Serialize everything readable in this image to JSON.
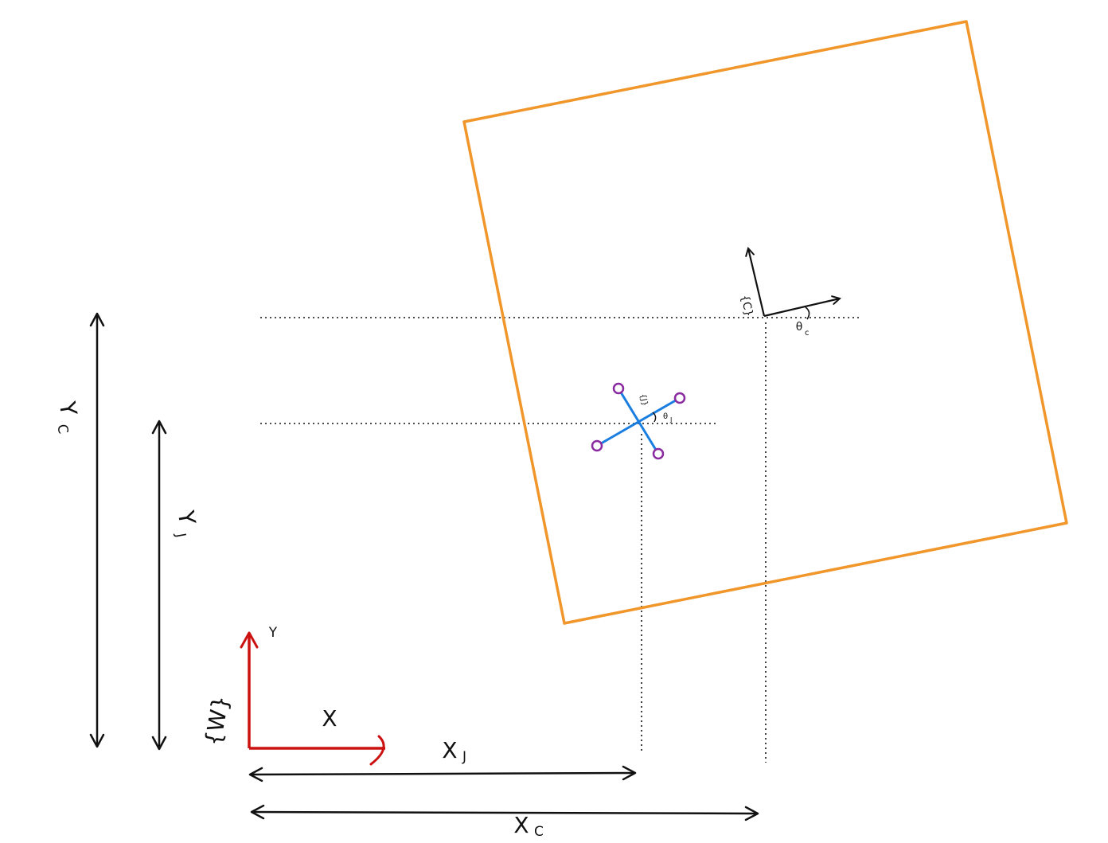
{
  "labels": {
    "world_frame": "{W}",
    "world_x_axis": "X",
    "world_y_axis": "Y",
    "yc_main": "Y",
    "yc_sub": "C",
    "yj_main": "Y",
    "yj_sub": "J",
    "xj_main": "X",
    "xj_sub": "J",
    "xc_main": "X",
    "xc_sub": "C",
    "c_frame": "{C}",
    "theta_c_main": "θ",
    "theta_c_sub": "c",
    "j_frame": "{J}",
    "theta_j_main": "θ",
    "theta_j_sub": "J"
  },
  "colors": {
    "ink": "#111111",
    "world_frame": "#cc1111",
    "board_outline": "#f0962a",
    "joint_cross": "#1a7ee0",
    "joint_ends": "#8a2aa0"
  }
}
